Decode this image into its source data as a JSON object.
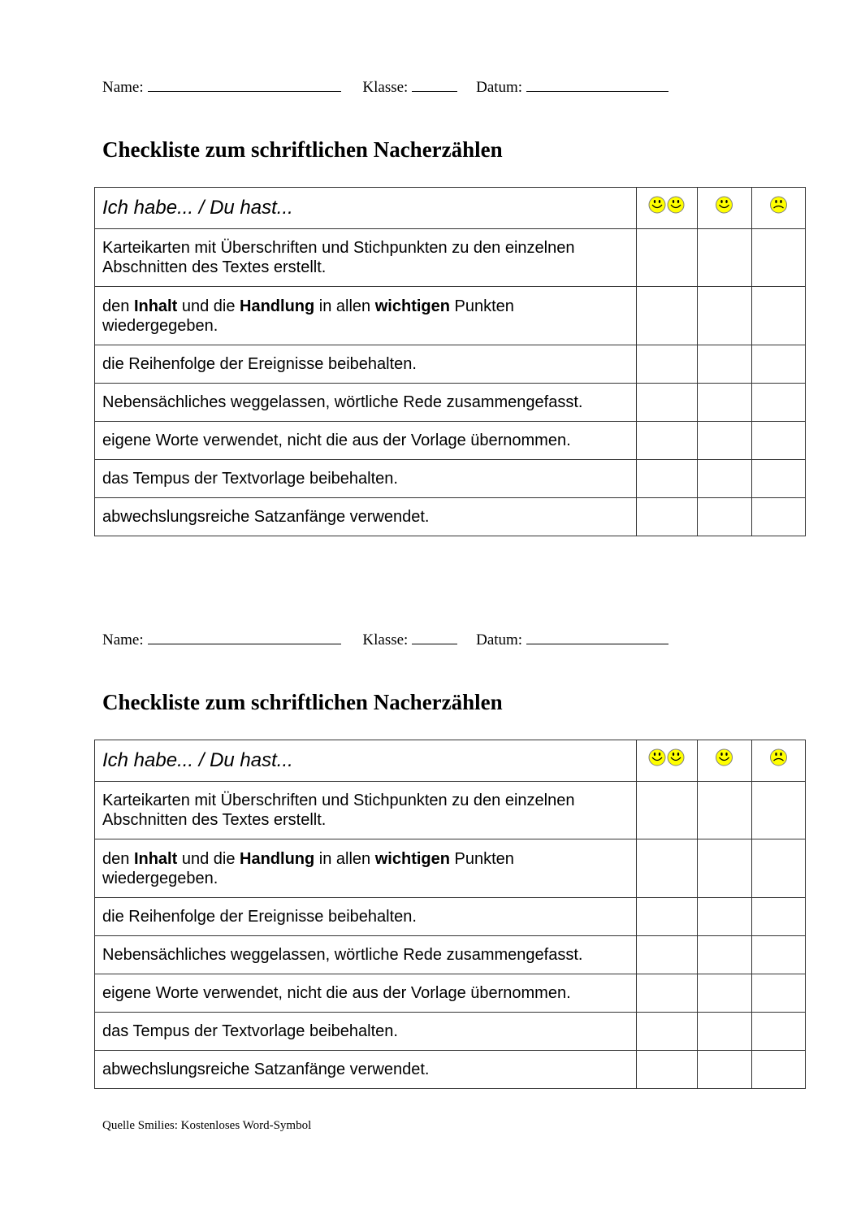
{
  "forms": [
    {
      "name_label": "Name:",
      "class_label": "Klasse:",
      "date_label": "Datum:",
      "title": "Checkliste zum schriftlichen Nacherzählen",
      "table_header": "Ich habe... / Du hast...",
      "rating_icons": [
        "double-smiley-icon",
        "smiley-icon",
        "sad-face-icon"
      ],
      "rows": [
        [
          {
            "t": "Karteikarten mit Überschriften und Stichpunkten zu den einzelnen Abschnitten des Textes erstellt.",
            "b": false
          }
        ],
        [
          {
            "t": "den ",
            "b": false
          },
          {
            "t": "Inhalt",
            "b": true
          },
          {
            "t": " und die ",
            "b": false
          },
          {
            "t": "Handlung",
            "b": true
          },
          {
            "t": " in allen ",
            "b": false
          },
          {
            "t": "wichtigen",
            "b": true
          },
          {
            "t": " Punkten wiedergegeben.",
            "b": false
          }
        ],
        [
          {
            "t": "die Reihenfolge der Ereignisse beibehalten.",
            "b": false
          }
        ],
        [
          {
            "t": "Nebensächliches weggelassen, wörtliche Rede zusammengefasst.",
            "b": false
          }
        ],
        [
          {
            "t": "eigene Worte verwendet, nicht die aus der Vorlage übernommen.",
            "b": false
          }
        ],
        [
          {
            "t": "das Tempus der Textvorlage beibehalten.",
            "b": false
          }
        ],
        [
          {
            "t": "abwechslungsreiche Satzanfänge verwendet.",
            "b": false
          }
        ]
      ]
    },
    {
      "name_label": "Name:",
      "class_label": "Klasse:",
      "date_label": "Datum:",
      "title": "Checkliste zum schriftlichen Nacherzählen",
      "table_header": "Ich habe... / Du hast...",
      "rating_icons": [
        "double-smiley-icon",
        "smiley-icon",
        "sad-face-icon"
      ],
      "rows": [
        [
          {
            "t": "Karteikarten mit Überschriften und Stichpunkten zu den einzelnen Abschnitten des Textes erstellt.",
            "b": false
          }
        ],
        [
          {
            "t": "den ",
            "b": false
          },
          {
            "t": "Inhalt",
            "b": true
          },
          {
            "t": " und die ",
            "b": false
          },
          {
            "t": "Handlung",
            "b": true
          },
          {
            "t": " in allen ",
            "b": false
          },
          {
            "t": "wichtigen",
            "b": true
          },
          {
            "t": " Punkten wiedergegeben.",
            "b": false
          }
        ],
        [
          {
            "t": "die Reihenfolge der Ereignisse beibehalten.",
            "b": false
          }
        ],
        [
          {
            "t": "Nebensächliches weggelassen, wörtliche Rede zusammengefasst.",
            "b": false
          }
        ],
        [
          {
            "t": "eigene Worte verwendet, nicht die aus der Vorlage übernommen.",
            "b": false
          }
        ],
        [
          {
            "t": "das Tempus der Textvorlage beibehalten.",
            "b": false
          }
        ],
        [
          {
            "t": "abwechslungsreiche Satzanfänge verwendet.",
            "b": false
          }
        ]
      ]
    }
  ],
  "colors": {
    "smiley_fill": "#ffff00",
    "smiley_outline": "#808080"
  },
  "footer": "Quelle Smilies: Kostenloses Word-Symbol"
}
